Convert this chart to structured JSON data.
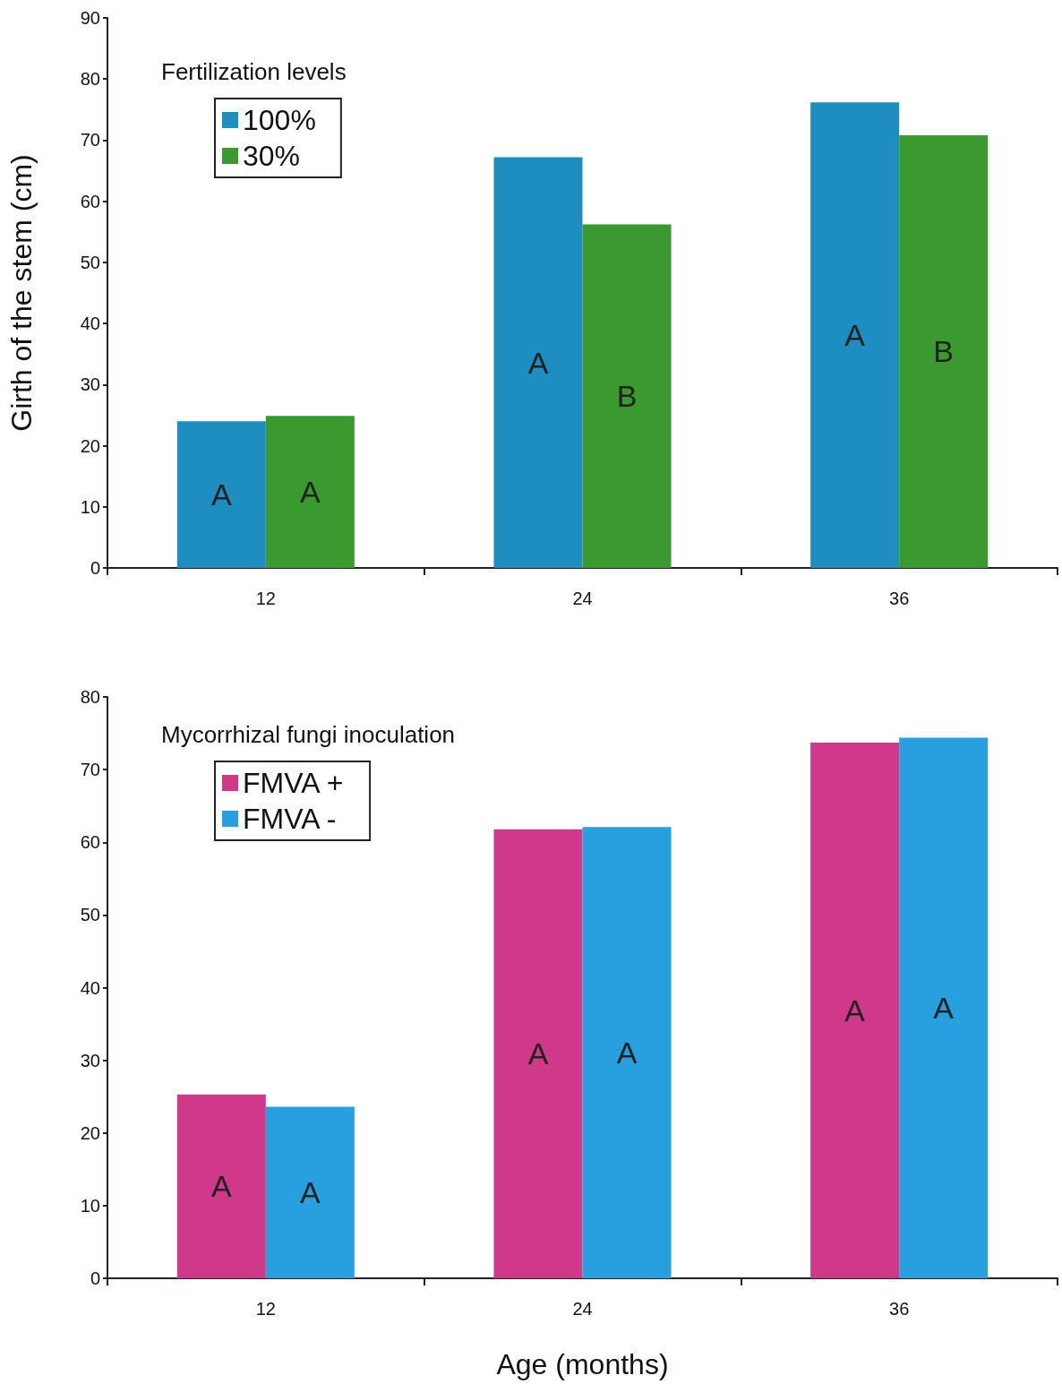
{
  "chart_data": [
    {
      "type": "bar",
      "categories": [
        "12",
        "24",
        "36"
      ],
      "ylabel": "Girth of the stem (cm)",
      "legend_title": "Fertilization levels",
      "legend": "top left",
      "grid": false,
      "ylim": [
        0,
        90
      ],
      "yticks": [
        0,
        10,
        20,
        30,
        40,
        50,
        60,
        70,
        80,
        90
      ],
      "series": [
        {
          "name": "100%",
          "color": "#1e8ec0",
          "values": [
            24,
            67.2,
            76.2
          ],
          "value_labels": [
            "A",
            "A",
            "A"
          ]
        },
        {
          "name": "30%",
          "color": "#3a9a30",
          "values": [
            24.9,
            56.2,
            70.8
          ],
          "value_labels": [
            "A",
            "B",
            "B"
          ]
        }
      ]
    },
    {
      "type": "bar",
      "categories": [
        "12",
        "24",
        "36"
      ],
      "xlabel": "Age (months)",
      "legend_title": "Mycorrhizal fungi inoculation",
      "legend": "top left",
      "grid": false,
      "ylim": [
        0,
        80
      ],
      "yticks": [
        0,
        10,
        20,
        30,
        40,
        50,
        60,
        70,
        80
      ],
      "series": [
        {
          "name": "FMVA +",
          "color": "#d0388a",
          "values": [
            25.3,
            61.8,
            73.7
          ],
          "value_labels": [
            "A",
            "A",
            "A"
          ]
        },
        {
          "name": "FMVA -",
          "color": "#28a0e0",
          "values": [
            23.6,
            62.1,
            74.4
          ],
          "value_labels": [
            "A",
            "A",
            "A"
          ]
        }
      ]
    }
  ]
}
